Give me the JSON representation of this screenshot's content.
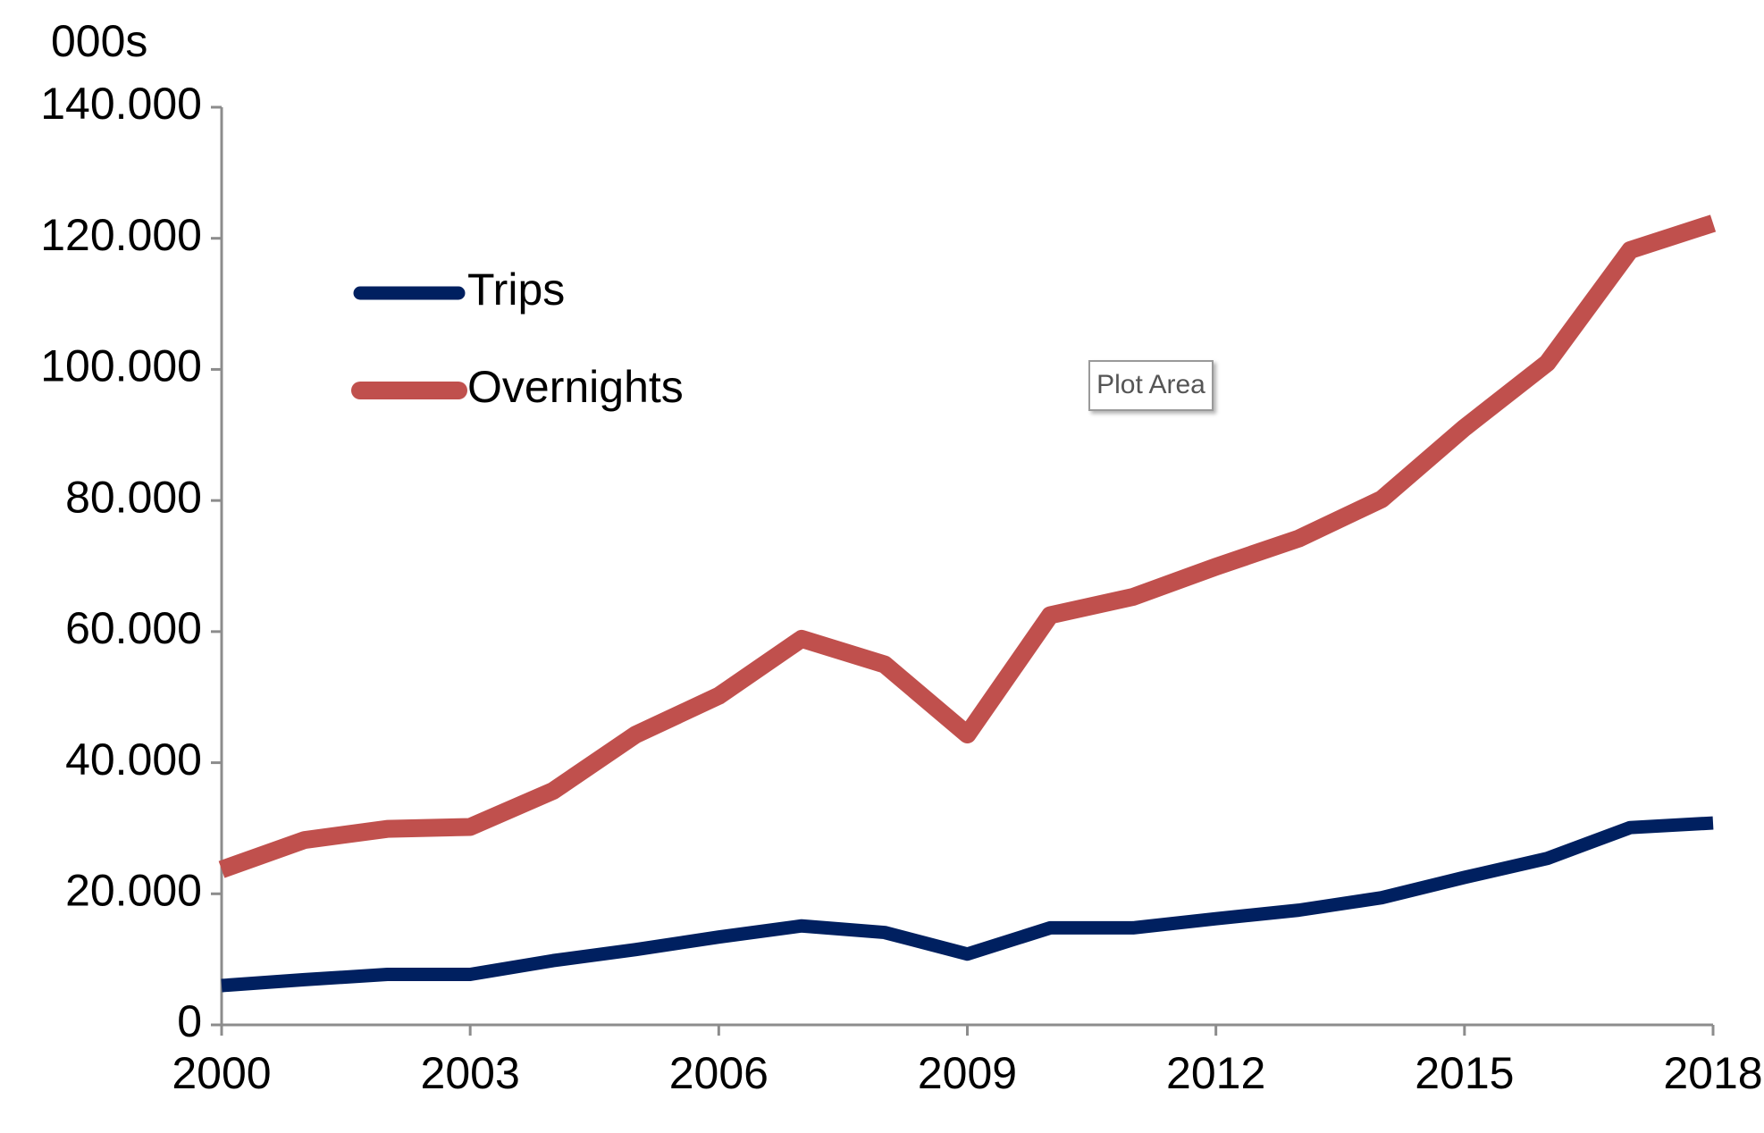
{
  "chart_data": {
    "type": "line",
    "y_unit": "000s",
    "annotation": "Plot Area",
    "x": [
      2000,
      2001,
      2002,
      2003,
      2004,
      2005,
      2006,
      2007,
      2008,
      2009,
      2010,
      2011,
      2012,
      2013,
      2014,
      2015,
      2016,
      2017,
      2018
    ],
    "series": [
      {
        "name": "Trips",
        "color": "#002060",
        "values": [
          6000,
          6900,
          7700,
          7700,
          9800,
          11500,
          13400,
          15100,
          14100,
          10800,
          14800,
          14800,
          16200,
          17500,
          19400,
          22500,
          25400,
          30100,
          30800
        ]
      },
      {
        "name": "Overnights",
        "color": "#c0504d",
        "values": [
          23700,
          28200,
          29900,
          30200,
          35700,
          44300,
          50200,
          58900,
          55000,
          44300,
          62500,
          65300,
          69900,
          74200,
          80200,
          91100,
          101000,
          118200,
          122300
        ]
      }
    ],
    "xlim": [
      2000,
      2018
    ],
    "xticks": [
      2000,
      2003,
      2006,
      2009,
      2012,
      2015,
      2018
    ],
    "ylim": [
      0,
      140000
    ],
    "yticks": [
      0,
      {
        "value": 20000,
        "label": "20.000"
      },
      {
        "value": 40000,
        "label": "40.000"
      },
      {
        "value": 60000,
        "label": "60.000"
      },
      {
        "value": 80000,
        "label": "80.000"
      },
      {
        "value": 100000,
        "label": "100.000"
      },
      {
        "value": 120000,
        "label": "120.000"
      },
      {
        "value": 140000,
        "label": "140.000"
      }
    ],
    "grid": false,
    "legend": "upper left"
  }
}
